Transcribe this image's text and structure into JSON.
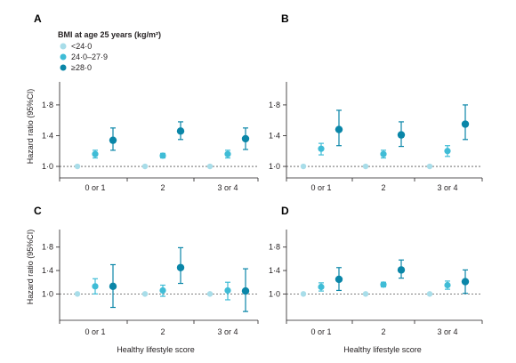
{
  "legend": {
    "title": "BMI at age 25 years (kg/m²)",
    "items": [
      {
        "label": "<24·0",
        "color": "#a8dde9"
      },
      {
        "label": "24·0–27·9",
        "color": "#3fbcd6"
      },
      {
        "label": "≥28·0",
        "color": "#0a86a8"
      }
    ]
  },
  "y_axis_title": "Hazard ratio (95%CI)",
  "x_axis_title": "Healthy lifestyle score",
  "chart_data": [
    {
      "panel": "A",
      "type": "scatter",
      "categories": [
        "0 or 1",
        "2",
        "3 or 4"
      ],
      "ylim": [
        0.85,
        2.1
      ],
      "yticks": [
        "1·0",
        "1·4",
        "1·8"
      ],
      "reference_line": 1.0,
      "series": [
        {
          "name": "<24·0",
          "values": [
            1.0,
            1.0,
            1.0
          ],
          "lower": [
            1.0,
            1.0,
            1.0
          ],
          "upper": [
            1.0,
            1.0,
            1.0
          ]
        },
        {
          "name": "24·0–27·9",
          "values": [
            1.16,
            1.14,
            1.16
          ],
          "lower": [
            1.11,
            1.11,
            1.11
          ],
          "upper": [
            1.21,
            1.17,
            1.21
          ]
        },
        {
          "name": "≥28·0",
          "values": [
            1.34,
            1.46,
            1.36
          ],
          "lower": [
            1.21,
            1.35,
            1.22
          ],
          "upper": [
            1.5,
            1.58,
            1.5
          ]
        }
      ]
    },
    {
      "panel": "B",
      "type": "scatter",
      "categories": [
        "0 or 1",
        "2",
        "3 or 4"
      ],
      "ylim": [
        0.85,
        2.1
      ],
      "yticks": [
        "1·0",
        "1·4",
        "1·8"
      ],
      "reference_line": 1.0,
      "series": [
        {
          "name": "<24·0",
          "values": [
            1.0,
            1.0,
            1.0
          ],
          "lower": [
            1.0,
            1.0,
            1.0
          ],
          "upper": [
            1.0,
            1.0,
            1.0
          ]
        },
        {
          "name": "24·0–27·9",
          "values": [
            1.23,
            1.16,
            1.2
          ],
          "lower": [
            1.15,
            1.11,
            1.13
          ],
          "upper": [
            1.3,
            1.21,
            1.27
          ]
        },
        {
          "name": "≥28·0",
          "values": [
            1.48,
            1.41,
            1.55
          ],
          "lower": [
            1.27,
            1.26,
            1.35
          ],
          "upper": [
            1.73,
            1.58,
            1.8
          ]
        }
      ]
    },
    {
      "panel": "C",
      "type": "scatter",
      "categories": [
        "0 or 1",
        "2",
        "3 or 4"
      ],
      "ylim": [
        0.55,
        2.1
      ],
      "yticks": [
        "1·0",
        "1·4",
        "1·8"
      ],
      "reference_line": 1.0,
      "series": [
        {
          "name": "<24·0",
          "values": [
            1.0,
            1.0,
            1.0
          ],
          "lower": [
            1.0,
            1.0,
            1.0
          ],
          "upper": [
            1.0,
            1.0,
            1.0
          ]
        },
        {
          "name": "24·0–27·9",
          "values": [
            1.13,
            1.06,
            1.06
          ],
          "lower": [
            1.0,
            0.96,
            0.9
          ],
          "upper": [
            1.26,
            1.15,
            1.2
          ]
        },
        {
          "name": "≥28·0",
          "values": [
            1.13,
            1.45,
            1.05
          ],
          "lower": [
            0.77,
            1.18,
            0.7
          ],
          "upper": [
            1.5,
            1.79,
            1.43
          ]
        }
      ]
    },
    {
      "panel": "D",
      "type": "scatter",
      "categories": [
        "0 or 1",
        "2",
        "3 or 4"
      ],
      "ylim": [
        0.55,
        2.1
      ],
      "yticks": [
        "1·0",
        "1·4",
        "1·8"
      ],
      "reference_line": 1.0,
      "series": [
        {
          "name": "<24·0",
          "values": [
            1.0,
            1.0,
            1.0
          ],
          "lower": [
            1.0,
            1.0,
            1.0
          ],
          "upper": [
            1.0,
            1.0,
            1.0
          ]
        },
        {
          "name": "24·0–27·9",
          "values": [
            1.12,
            1.16,
            1.15
          ],
          "lower": [
            1.05,
            1.12,
            1.08
          ],
          "upper": [
            1.19,
            1.2,
            1.22
          ]
        },
        {
          "name": "≥28·0",
          "values": [
            1.25,
            1.41,
            1.21
          ],
          "lower": [
            1.06,
            1.27,
            1.01
          ],
          "upper": [
            1.45,
            1.58,
            1.41
          ]
        }
      ]
    }
  ]
}
